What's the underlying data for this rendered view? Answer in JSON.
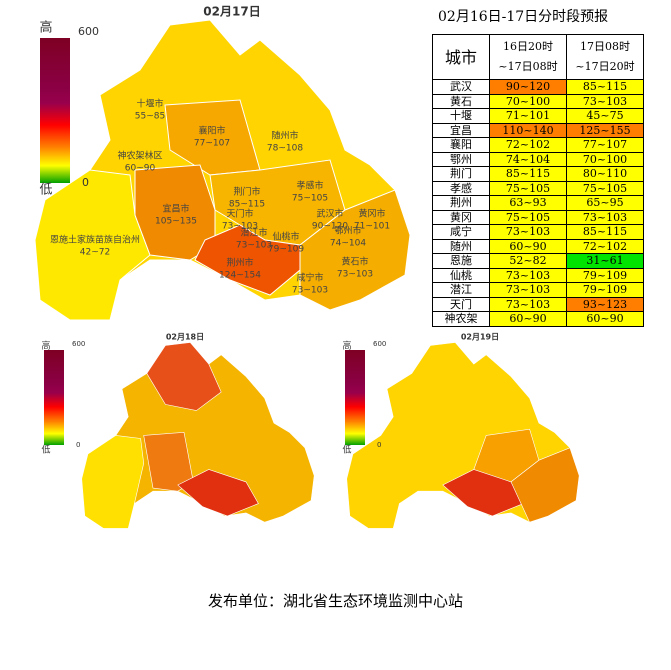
{
  "maps": [
    {
      "date": "02月17日",
      "legend": {
        "high": "高",
        "low": "低",
        "max": "600",
        "min": "0"
      },
      "labels": [
        {
          "name": "十堰市",
          "range": "55~85"
        },
        {
          "name": "襄阳市",
          "range": "77~107"
        },
        {
          "name": "随州市",
          "range": "78~108"
        },
        {
          "name": "神农架林区",
          "range": "60~90"
        },
        {
          "name": "孝感市",
          "range": "75~105"
        },
        {
          "name": "荆门市",
          "range": "85~115"
        },
        {
          "name": "宜昌市",
          "range": "105~135"
        },
        {
          "name": "天门市",
          "range": "73~103"
        },
        {
          "name": "潜江市",
          "range": "73~103"
        },
        {
          "name": "仙桃市",
          "range": "79~109"
        },
        {
          "name": "武汉市",
          "range": "90~120"
        },
        {
          "name": "黄冈市",
          "range": "71~101"
        },
        {
          "name": "鄂州市",
          "range": "74~104"
        },
        {
          "name": "恩施土家族苗族自治州",
          "range": "42~72"
        },
        {
          "name": "荆州市",
          "range": "124~154"
        },
        {
          "name": "黄石市",
          "range": "73~103"
        },
        {
          "name": "咸宁市",
          "range": "73~103"
        }
      ]
    },
    {
      "date": "02月18日",
      "legend": {
        "high": "高",
        "low": "低",
        "max": "600",
        "min": "0"
      }
    },
    {
      "date": "02月19日",
      "legend": {
        "high": "高",
        "low": "低",
        "max": "600",
        "min": "0"
      }
    }
  ],
  "table": {
    "title": "02月16日-17日分时段预报",
    "header": {
      "city": "城市",
      "periods": [
        [
          "16日20时",
          "~17日08时"
        ],
        [
          "17日08时",
          "~17日20时"
        ]
      ]
    },
    "rows": [
      [
        "武汉",
        "90~120",
        "85~115"
      ],
      [
        "黄石",
        "70~100",
        "73~103"
      ],
      [
        "十堰",
        "71~101",
        "45~75"
      ],
      [
        "宜昌",
        "110~140",
        "125~155"
      ],
      [
        "襄阳",
        "72~102",
        "77~107"
      ],
      [
        "鄂州",
        "74~104",
        "70~100"
      ],
      [
        "荆门",
        "85~115",
        "80~110"
      ],
      [
        "孝感",
        "75~105",
        "75~105"
      ],
      [
        "荆州",
        "63~93",
        "65~95"
      ],
      [
        "黄冈",
        "75~105",
        "73~103"
      ],
      [
        "咸宁",
        "73~103",
        "85~115"
      ],
      [
        "随州",
        "60~90",
        "72~102"
      ],
      [
        "恩施",
        "52~82",
        "31~61"
      ],
      [
        "仙桃",
        "73~103",
        "79~109"
      ],
      [
        "潜江",
        "73~103",
        "79~109"
      ],
      [
        "天门",
        "73~103",
        "93~123"
      ],
      [
        "神农架",
        "60~90",
        "60~90"
      ]
    ],
    "cell_colors": [
      [
        "#ff7e00",
        "#ffff00"
      ],
      [
        "#ffff00",
        "#ffff00"
      ],
      [
        "#ffff00",
        "#ffff00"
      ],
      [
        "#ff7e00",
        "#ff7e00"
      ],
      [
        "#ffff00",
        "#ffff00"
      ],
      [
        "#ffff00",
        "#ffff00"
      ],
      [
        "#ffff00",
        "#ffff00"
      ],
      [
        "#ffff00",
        "#ffff00"
      ],
      [
        "#ffff00",
        "#ffff00"
      ],
      [
        "#ffff00",
        "#ffff00"
      ],
      [
        "#ffff00",
        "#ffff00"
      ],
      [
        "#ffff00",
        "#ffff00"
      ],
      [
        "#ffff00",
        "#00e400"
      ],
      [
        "#ffff00",
        "#ffff00"
      ],
      [
        "#ffff00",
        "#ffff00"
      ],
      [
        "#ffff00",
        "#ff7e00"
      ],
      [
        "#ffff00",
        "#ffff00"
      ]
    ]
  },
  "footer": "发布单位：湖北省生态环境监测中心站"
}
